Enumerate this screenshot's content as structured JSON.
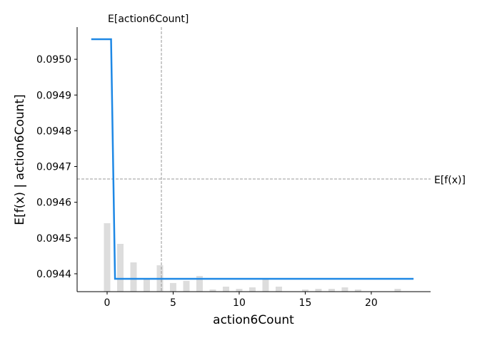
{
  "chart_data": {
    "type": "line",
    "xlabel": "action6Count",
    "ylabel": "E[f(x) | action6Count]",
    "xlim": [
      -2.27,
      24.49
    ],
    "ylim": [
      0.09435,
      0.09509
    ],
    "xticks": [
      0,
      5,
      10,
      15,
      20
    ],
    "yticks": [
      0.0944,
      0.0945,
      0.0946,
      0.0947,
      0.0948,
      0.0949,
      {
        "value": 0.095,
        "label": "0.0950"
      }
    ],
    "series": [
      {
        "color": "#1e88e5",
        "x": [
          -1.2,
          0.3,
          0.6,
          23.2
        ],
        "values": [
          0.095056,
          0.095056,
          0.094386,
          0.094386
        ]
      }
    ],
    "histogram": {
      "color": "#dddddd",
      "x": [
        0,
        1,
        2,
        3,
        4,
        5,
        6,
        7,
        8,
        9,
        10,
        11,
        12,
        13,
        15,
        16,
        17,
        18,
        19,
        22
      ],
      "values": [
        0.0945415,
        0.0944837,
        0.0944319,
        0.0943841,
        0.0944239,
        0.0943741,
        0.0943801,
        0.094394,
        0.0943561,
        0.094364,
        0.094358,
        0.094362,
        0.094386,
        0.094364,
        0.094356,
        0.094358,
        0.094358,
        0.094362,
        0.094356,
        0.094358
      ]
    },
    "vline": {
      "value": 4.11,
      "label": "E[action6Count]"
    },
    "hline": {
      "value": 0.0946651,
      "label": "E[f(x)]"
    }
  }
}
